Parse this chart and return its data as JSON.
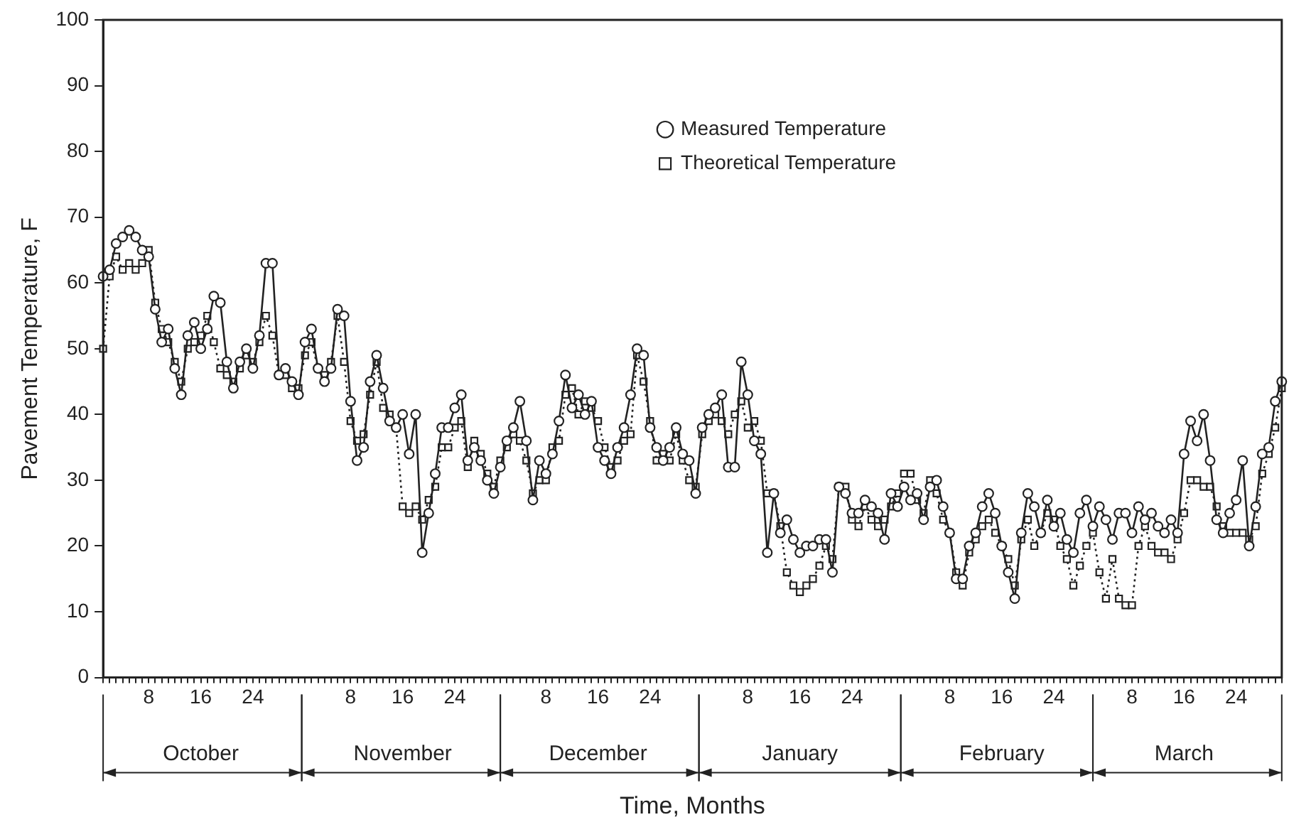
{
  "chart_data": {
    "type": "line",
    "xlabel": "Time, Months",
    "ylabel": "Pavement Temperature, F",
    "categories": [
      null,
      null,
      null,
      null,
      null,
      null,
      null,
      "8",
      null,
      null,
      null,
      null,
      null,
      null,
      null,
      "16",
      null,
      null,
      null,
      null,
      null,
      null,
      null,
      "24",
      null,
      null,
      null,
      null,
      null,
      null,
      null,
      null,
      null,
      null,
      null,
      null,
      null,
      null,
      "8",
      null,
      null,
      null,
      null,
      null,
      null,
      null,
      "16",
      null,
      null,
      null,
      null,
      null,
      null,
      null,
      "24",
      null,
      null,
      null,
      null,
      null,
      null,
      null,
      null,
      null,
      null,
      null,
      null,
      null,
      "8",
      null,
      null,
      null,
      null,
      null,
      null,
      null,
      "16",
      null,
      null,
      null,
      null,
      null,
      null,
      null,
      "24",
      null,
      null,
      null,
      null,
      null,
      null,
      null,
      null,
      null,
      null,
      null,
      null,
      null,
      null,
      "8",
      null,
      null,
      null,
      null,
      null,
      null,
      null,
      "16",
      null,
      null,
      null,
      null,
      null,
      null,
      null,
      "24",
      null,
      null,
      null,
      null,
      null,
      null,
      null,
      null,
      null,
      null,
      null,
      null,
      null,
      null,
      "8",
      null,
      null,
      null,
      null,
      null,
      null,
      null,
      "16",
      null,
      null,
      null,
      null,
      null,
      null,
      null,
      "24",
      null,
      null,
      null,
      null,
      null,
      null,
      null,
      null,
      null,
      null,
      null,
      "8",
      null,
      null,
      null,
      null,
      null,
      null,
      null,
      "16",
      null,
      null,
      null,
      null,
      null,
      null,
      null,
      "24",
      null,
      null,
      null,
      null,
      null,
      null,
      null
    ],
    "series": [
      {
        "name": "Measured Temperature",
        "color": "#222222",
        "marker": "circle",
        "line_style": "solid",
        "values": [
          61,
          62,
          66,
          67,
          68,
          67,
          65,
          64,
          56,
          51,
          53,
          47,
          43,
          52,
          54,
          50,
          53,
          58,
          57,
          48,
          44,
          48,
          50,
          47,
          52,
          63,
          63,
          46,
          47,
          45,
          43,
          51,
          53,
          47,
          45,
          47,
          56,
          55,
          42,
          33,
          35,
          45,
          49,
          44,
          39,
          38,
          40,
          34,
          40,
          19,
          25,
          31,
          38,
          38,
          41,
          43,
          33,
          35,
          33,
          30,
          28,
          32,
          36,
          38,
          42,
          36,
          27,
          33,
          31,
          34,
          39,
          46,
          41,
          43,
          40,
          42,
          35,
          33,
          31,
          35,
          38,
          43,
          50,
          49,
          38,
          35,
          33,
          35,
          38,
          34,
          33,
          28,
          38,
          40,
          41,
          43,
          32,
          32,
          48,
          43,
          36,
          34,
          19,
          28,
          22,
          24,
          21,
          19,
          20,
          20,
          21,
          21,
          16,
          29,
          28,
          25,
          25,
          27,
          26,
          25,
          21,
          28,
          26,
          29,
          27,
          28,
          24,
          29,
          30,
          26,
          22,
          15,
          15,
          20,
          22,
          26,
          28,
          25,
          20,
          16,
          12,
          22,
          28,
          26,
          22,
          27,
          23,
          25,
          21,
          19,
          25,
          27,
          23,
          26,
          24,
          21,
          25,
          25,
          22,
          26,
          24,
          25,
          23,
          22,
          24,
          22,
          34,
          39,
          36,
          40,
          33,
          24,
          22,
          25,
          27,
          33,
          20,
          26,
          34,
          35,
          42,
          45
        ]
      },
      {
        "name": "Theoretical Temperature",
        "color": "#222222",
        "marker": "square",
        "line_style": "dotted",
        "values": [
          50,
          61,
          64,
          62,
          63,
          62,
          63,
          65,
          57,
          53,
          51,
          48,
          45,
          50,
          51,
          52,
          55,
          51,
          47,
          46,
          45,
          47,
          49,
          48,
          51,
          55,
          52,
          46,
          46,
          44,
          44,
          49,
          51,
          47,
          46,
          48,
          55,
          48,
          39,
          36,
          37,
          43,
          48,
          41,
          40,
          38,
          26,
          25,
          26,
          24,
          27,
          29,
          35,
          35,
          38,
          39,
          32,
          36,
          34,
          31,
          29,
          33,
          35,
          37,
          36,
          33,
          28,
          30,
          30,
          35,
          36,
          43,
          44,
          40,
          42,
          41,
          39,
          35,
          32,
          33,
          36,
          37,
          49,
          45,
          39,
          33,
          34,
          33,
          37,
          33,
          30,
          29,
          37,
          39,
          40,
          39,
          37,
          40,
          42,
          38,
          39,
          36,
          28,
          28,
          23,
          16,
          14,
          13,
          14,
          15,
          17,
          20,
          18,
          29,
          29,
          24,
          23,
          26,
          24,
          23,
          24,
          26,
          28,
          31,
          31,
          27,
          25,
          30,
          28,
          24,
          22,
          16,
          14,
          19,
          21,
          23,
          24,
          22,
          20,
          18,
          14,
          21,
          24,
          20,
          22,
          25,
          24,
          20,
          18,
          14,
          17,
          20,
          22,
          16,
          12,
          18,
          12,
          11,
          11,
          20,
          23,
          20,
          19,
          19,
          18,
          21,
          25,
          30,
          30,
          29,
          29,
          26,
          23,
          22,
          22,
          22,
          21,
          23,
          31,
          34,
          38,
          44
        ]
      }
    ],
    "ylim": [
      0,
      100
    ],
    "yticks": [
      0,
      10,
      20,
      30,
      40,
      50,
      60,
      70,
      80,
      90,
      100
    ],
    "annotations": [
      "October",
      "November",
      "December",
      "January",
      "February",
      "March"
    ],
    "grid": false,
    "legend": "top right"
  }
}
